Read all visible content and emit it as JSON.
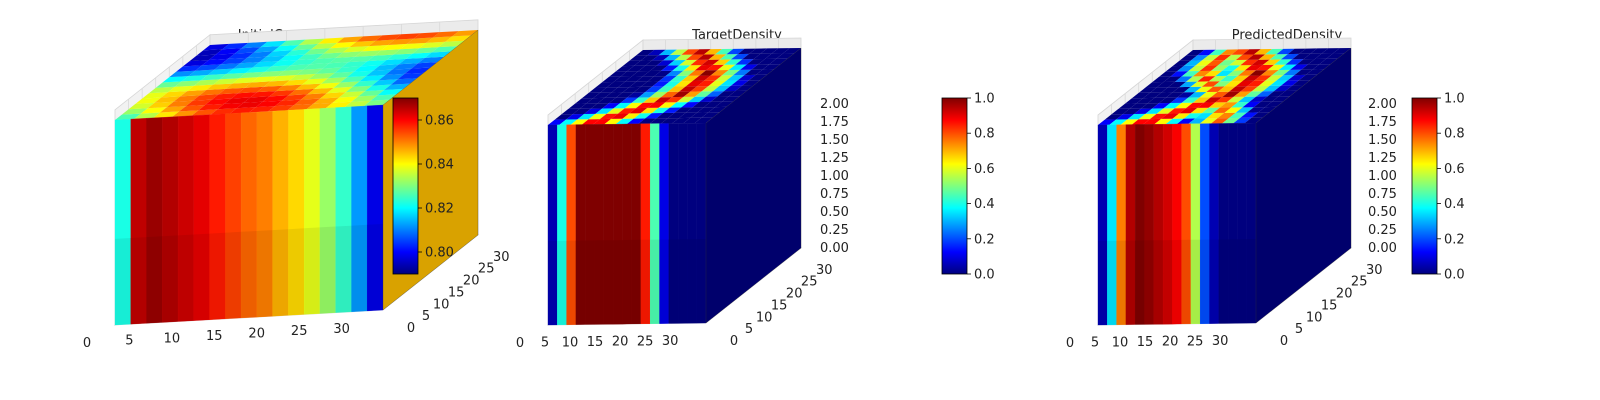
{
  "colormap": [
    "#00007f",
    "#0000ff",
    "#007fff",
    "#00ffff",
    "#7fff7f",
    "#ffff00",
    "#ff7f00",
    "#ff0000",
    "#7f0000"
  ],
  "chart_data": [
    {
      "type": "heatmap",
      "title": "InitialCompliance",
      "x_ticks": [
        "0",
        "5",
        "10",
        "15",
        "20",
        "25",
        "30"
      ],
      "y_ticks": [
        "0",
        "5",
        "10",
        "15",
        "20",
        "25",
        "30"
      ],
      "z_ticks": [],
      "colorbar": {
        "min": 0.79,
        "max": 0.87,
        "ticks": [
          "0.80",
          "0.82",
          "0.84",
          "0.86"
        ],
        "tick_values": [
          0.8,
          0.82,
          0.84,
          0.86
        ]
      },
      "front_face_profile": [
        0.822,
        0.865,
        0.868,
        0.866,
        0.864,
        0.862,
        0.858,
        0.855,
        0.852,
        0.85,
        0.846,
        0.843,
        0.838,
        0.832,
        0.824,
        0.812,
        0.798
      ],
      "side_face_value": 0.845
    },
    {
      "type": "heatmap",
      "title": "TargetDensity",
      "x_ticks": [
        "0",
        "5",
        "10",
        "15",
        "20",
        "25",
        "30"
      ],
      "y_ticks": [
        "0",
        "5",
        "10",
        "15",
        "20",
        "25",
        "30"
      ],
      "z_ticks": [
        "0.00",
        "0.25",
        "0.50",
        "0.75",
        "1.00",
        "1.25",
        "1.50",
        "1.75",
        "2.00"
      ],
      "colorbar": {
        "min": 0.0,
        "max": 1.0,
        "ticks": [
          "0.0",
          "0.2",
          "0.4",
          "0.6",
          "0.8",
          "1.0"
        ],
        "tick_values": [
          0.0,
          0.2,
          0.4,
          0.6,
          0.8,
          1.0
        ]
      },
      "front_face_profile": [
        0.05,
        0.4,
        0.8,
        1.0,
        1.0,
        1.0,
        1.0,
        1.0,
        1.0,
        1.0,
        0.85,
        0.45,
        0.1,
        0.0,
        0.0,
        0.0,
        0.0
      ],
      "side_face_value": 0.0
    },
    {
      "type": "heatmap",
      "title": "PredictedDensity",
      "x_ticks": [
        "0",
        "5",
        "10",
        "15",
        "20",
        "25",
        "30"
      ],
      "y_ticks": [
        "0",
        "5",
        "10",
        "15",
        "20",
        "25",
        "30"
      ],
      "z_ticks": [
        "0.00",
        "0.25",
        "0.50",
        "0.75",
        "1.00",
        "1.25",
        "1.50",
        "1.75",
        "2.00"
      ],
      "colorbar": {
        "min": 0.0,
        "max": 1.0,
        "ticks": [
          "0.0",
          "0.2",
          "0.4",
          "0.6",
          "0.8",
          "1.0"
        ],
        "tick_values": [
          0.0,
          0.2,
          0.4,
          0.6,
          0.8,
          1.0
        ]
      },
      "front_face_profile": [
        0.05,
        0.35,
        0.75,
        0.95,
        1.0,
        0.98,
        0.95,
        0.92,
        0.88,
        0.8,
        0.55,
        0.2,
        0.05,
        0.0,
        0.0,
        0.0,
        0.0
      ],
      "side_face_value": 0.0
    }
  ]
}
